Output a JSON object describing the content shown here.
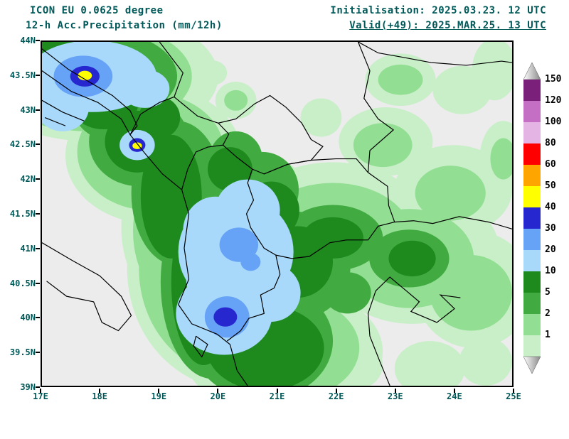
{
  "header": {
    "model": "ICON EU 0.0625 degree",
    "product": "12-h Acc.Precipitation (mm/12h)",
    "initialisation": "Initialisation: 2025.03.23. 12 UTC",
    "valid": "Valid(+49): 2025.MAR.25. 13 UTC"
  },
  "colors": {
    "title_text": "#005858",
    "axis_text": "#005858",
    "map_background": "#ececec",
    "border_line": "#000000",
    "frame": "#000000"
  },
  "map": {
    "lon_range": [
      17,
      25
    ],
    "lat_range": [
      39,
      44
    ],
    "lat_labels": [
      "44N",
      "43.5N",
      "43N",
      "42.5N",
      "42N",
      "41.5N",
      "41N",
      "40.5N",
      "40N",
      "39.5N",
      "39N"
    ],
    "lon_labels": [
      "17E",
      "18E",
      "19E",
      "20E",
      "21E",
      "22E",
      "23E",
      "24E",
      "25E"
    ],
    "borders": [
      {
        "name": "adriatic-coast",
        "points": [
          [
            17.0,
            43.58
          ],
          [
            17.5,
            43.28
          ],
          [
            17.95,
            43.12
          ],
          [
            18.35,
            42.88
          ],
          [
            18.5,
            42.65
          ],
          [
            18.75,
            42.38
          ],
          [
            19.05,
            42.08
          ],
          [
            19.38,
            41.85
          ],
          [
            19.5,
            41.5
          ],
          [
            19.42,
            41.0
          ],
          [
            19.5,
            40.55
          ],
          [
            19.32,
            40.18
          ],
          [
            19.55,
            39.9
          ],
          [
            19.98,
            39.75
          ],
          [
            20.2,
            39.6
          ],
          [
            20.32,
            39.22
          ],
          [
            20.5,
            39.0
          ]
        ]
      },
      {
        "name": "croatia-bosnia",
        "points": [
          [
            17.0,
            43.9
          ],
          [
            17.45,
            43.6
          ],
          [
            17.8,
            43.42
          ],
          [
            18.2,
            43.22
          ],
          [
            18.5,
            43.0
          ],
          [
            18.62,
            42.78
          ],
          [
            18.5,
            42.65
          ]
        ]
      },
      {
        "name": "dalmatian-islands-a",
        "points": [
          [
            17.0,
            43.15
          ],
          [
            17.35,
            42.98
          ],
          [
            17.72,
            42.85
          ]
        ]
      },
      {
        "name": "dalmatian-islands-b",
        "points": [
          [
            17.05,
            42.9
          ],
          [
            17.4,
            42.78
          ]
        ]
      },
      {
        "name": "bosnia-serbia",
        "points": [
          [
            19.0,
            44.0
          ],
          [
            19.4,
            43.55
          ],
          [
            19.25,
            43.2
          ],
          [
            19.65,
            42.92
          ],
          [
            20.0,
            42.82
          ]
        ]
      },
      {
        "name": "bosnia-montenegro",
        "points": [
          [
            18.5,
            42.65
          ],
          [
            18.68,
            42.95
          ],
          [
            19.0,
            43.12
          ],
          [
            19.25,
            43.2
          ]
        ]
      },
      {
        "name": "montenegro-east",
        "points": [
          [
            20.0,
            42.82
          ],
          [
            20.18,
            42.66
          ],
          [
            20.08,
            42.5
          ],
          [
            19.82,
            42.47
          ],
          [
            19.62,
            42.4
          ],
          [
            19.48,
            42.15
          ],
          [
            19.38,
            41.85
          ]
        ]
      },
      {
        "name": "kosovo",
        "points": [
          [
            20.0,
            42.82
          ],
          [
            20.3,
            42.88
          ],
          [
            20.62,
            43.1
          ],
          [
            20.88,
            43.22
          ],
          [
            21.15,
            43.05
          ],
          [
            21.42,
            42.82
          ],
          [
            21.58,
            42.58
          ],
          [
            21.78,
            42.48
          ],
          [
            21.58,
            42.28
          ],
          [
            21.18,
            42.22
          ],
          [
            20.78,
            42.08
          ],
          [
            20.58,
            42.15
          ],
          [
            20.32,
            42.32
          ],
          [
            20.08,
            42.5
          ]
        ]
      },
      {
        "name": "albania-east",
        "points": [
          [
            20.58,
            42.15
          ],
          [
            20.5,
            41.95
          ],
          [
            20.6,
            41.7
          ],
          [
            20.48,
            41.5
          ],
          [
            20.55,
            41.3
          ],
          [
            20.78,
            41.0
          ],
          [
            20.98,
            40.9
          ],
          [
            21.05,
            40.62
          ],
          [
            20.95,
            40.42
          ],
          [
            20.72,
            40.32
          ],
          [
            20.78,
            40.05
          ],
          [
            20.52,
            39.98
          ],
          [
            20.38,
            39.8
          ],
          [
            20.15,
            39.65
          ]
        ]
      },
      {
        "name": "macedonia-north",
        "points": [
          [
            20.78,
            42.08
          ],
          [
            21.18,
            42.22
          ],
          [
            21.58,
            42.28
          ],
          [
            22.0,
            42.3
          ],
          [
            22.35,
            42.3
          ],
          [
            22.55,
            42.1
          ]
        ]
      },
      {
        "name": "macedonia-bulgaria",
        "points": [
          [
            22.55,
            42.1
          ],
          [
            22.88,
            41.9
          ],
          [
            22.9,
            41.62
          ],
          [
            23.0,
            41.38
          ]
        ]
      },
      {
        "name": "greece-macedonia",
        "points": [
          [
            23.0,
            41.38
          ],
          [
            22.72,
            41.32
          ],
          [
            22.55,
            41.12
          ],
          [
            22.18,
            41.12
          ],
          [
            21.9,
            41.08
          ],
          [
            21.55,
            40.88
          ],
          [
            21.25,
            40.85
          ],
          [
            20.98,
            40.9
          ]
        ]
      },
      {
        "name": "serbia-bulgaria",
        "points": [
          [
            22.38,
            44.0
          ],
          [
            22.58,
            43.58
          ],
          [
            22.48,
            43.18
          ],
          [
            22.72,
            42.88
          ],
          [
            22.98,
            42.72
          ],
          [
            22.58,
            42.42
          ],
          [
            22.55,
            42.1
          ]
        ]
      },
      {
        "name": "bulgaria-greece",
        "points": [
          [
            23.0,
            41.38
          ],
          [
            23.32,
            41.4
          ],
          [
            23.65,
            41.36
          ],
          [
            24.1,
            41.46
          ],
          [
            24.6,
            41.38
          ],
          [
            25.0,
            41.28
          ]
        ]
      },
      {
        "name": "danube",
        "points": [
          [
            22.38,
            44.0
          ],
          [
            22.72,
            43.84
          ],
          [
            23.12,
            43.78
          ],
          [
            23.62,
            43.7
          ],
          [
            24.22,
            43.66
          ],
          [
            24.82,
            43.72
          ],
          [
            25.0,
            43.7
          ]
        ]
      },
      {
        "name": "aegean-coast",
        "points": [
          [
            22.92,
            39.0
          ],
          [
            22.75,
            39.35
          ],
          [
            22.58,
            39.72
          ],
          [
            22.55,
            40.05
          ],
          [
            22.68,
            40.38
          ],
          [
            22.92,
            40.58
          ],
          [
            23.2,
            40.38
          ],
          [
            23.42,
            40.22
          ],
          [
            23.28,
            40.08
          ],
          [
            23.72,
            39.92
          ],
          [
            24.02,
            40.12
          ],
          [
            23.78,
            40.32
          ],
          [
            24.12,
            40.28
          ]
        ]
      },
      {
        "name": "corfu-island",
        "points": [
          [
            19.62,
            39.72
          ],
          [
            19.82,
            39.6
          ],
          [
            19.72,
            39.42
          ],
          [
            19.58,
            39.58
          ],
          [
            19.62,
            39.72
          ]
        ]
      },
      {
        "name": "italy-heel-coast",
        "points": [
          [
            17.0,
            41.08
          ],
          [
            17.52,
            40.82
          ],
          [
            17.98,
            40.6
          ],
          [
            18.35,
            40.3
          ],
          [
            18.52,
            40.02
          ],
          [
            18.3,
            39.8
          ],
          [
            18.02,
            39.92
          ],
          [
            17.88,
            40.22
          ],
          [
            17.42,
            40.3
          ],
          [
            17.08,
            40.52
          ]
        ]
      }
    ],
    "precip_blobs": [
      [
        1,
        17.9,
        43.5,
        2.1,
        0.95
      ],
      [
        1,
        18.9,
        42.35,
        1.5,
        1.0
      ],
      [
        1,
        19.6,
        41.3,
        1.25,
        1.35
      ],
      [
        1,
        20.3,
        40.7,
        1.85,
        1.75
      ],
      [
        1,
        21.1,
        39.5,
        1.7,
        0.95
      ],
      [
        1,
        21.95,
        41.2,
        1.7,
        1.05
      ],
      [
        1,
        23.3,
        40.9,
        1.5,
        1.0
      ],
      [
        1,
        24.35,
        40.4,
        1.0,
        0.85
      ],
      [
        1,
        24.0,
        41.85,
        1.0,
        0.65
      ],
      [
        1,
        22.85,
        42.55,
        0.8,
        0.5
      ],
      [
        1,
        23.1,
        43.45,
        0.6,
        0.38
      ],
      [
        1,
        24.15,
        43.3,
        0.5,
        0.35
      ],
      [
        1,
        24.7,
        43.6,
        0.38,
        0.45
      ],
      [
        1,
        20.3,
        43.15,
        0.35,
        0.27
      ],
      [
        1,
        19.9,
        43.55,
        0.25,
        0.18
      ],
      [
        1,
        21.75,
        42.9,
        0.35,
        0.28
      ],
      [
        1,
        24.85,
        42.3,
        0.4,
        0.55
      ],
      [
        1,
        23.6,
        39.25,
        0.6,
        0.4
      ],
      [
        1,
        24.55,
        39.35,
        0.45,
        0.35
      ],
      [
        1,
        22.35,
        39.3,
        0.45,
        0.35
      ],
      [
        2,
        17.8,
        43.5,
        1.75,
        0.8
      ],
      [
        2,
        18.85,
        42.4,
        1.25,
        0.85
      ],
      [
        2,
        19.6,
        41.25,
        1.05,
        1.2
      ],
      [
        2,
        20.25,
        40.7,
        1.6,
        1.55
      ],
      [
        2,
        21.0,
        39.55,
        1.4,
        0.8
      ],
      [
        2,
        21.95,
        41.15,
        1.35,
        0.8
      ],
      [
        2,
        23.25,
        40.85,
        1.1,
        0.72
      ],
      [
        2,
        24.3,
        40.35,
        0.7,
        0.55
      ],
      [
        2,
        23.95,
        41.8,
        0.6,
        0.4
      ],
      [
        2,
        22.8,
        42.5,
        0.5,
        0.32
      ],
      [
        2,
        23.1,
        43.45,
        0.38,
        0.22
      ],
      [
        2,
        20.3,
        43.15,
        0.2,
        0.15
      ],
      [
        2,
        24.85,
        42.3,
        0.22,
        0.3
      ],
      [
        5,
        17.8,
        43.5,
        1.5,
        0.7
      ],
      [
        5,
        18.25,
        43.05,
        0.72,
        0.5
      ],
      [
        5,
        18.65,
        42.55,
        0.85,
        0.65
      ],
      [
        5,
        19.3,
        41.8,
        0.78,
        1.05
      ],
      [
        5,
        19.9,
        40.5,
        0.88,
        1.4
      ],
      [
        5,
        20.75,
        39.65,
        1.2,
        0.85
      ],
      [
        5,
        21.35,
        40.75,
        0.9,
        0.78
      ],
      [
        5,
        20.75,
        41.85,
        0.62,
        0.55
      ],
      [
        5,
        21.95,
        41.15,
        0.85,
        0.48
      ],
      [
        5,
        23.25,
        40.85,
        0.68,
        0.42
      ],
      [
        5,
        22.2,
        40.35,
        0.4,
        0.3
      ],
      [
        5,
        20.3,
        42.3,
        0.45,
        0.4
      ],
      [
        10,
        17.35,
        43.85,
        0.55,
        0.33
      ],
      [
        10,
        18.05,
        43.15,
        0.6,
        0.42
      ],
      [
        10,
        18.62,
        42.55,
        0.55,
        0.45
      ],
      [
        10,
        19.2,
        41.75,
        0.52,
        0.9
      ],
      [
        10,
        19.75,
        40.5,
        0.55,
        1.2
      ],
      [
        10,
        20.8,
        39.55,
        1.0,
        0.62
      ],
      [
        10,
        20.55,
        40.25,
        0.52,
        0.45
      ],
      [
        10,
        21.35,
        40.8,
        0.6,
        0.52
      ],
      [
        10,
        20.9,
        41.55,
        0.48,
        0.42
      ],
      [
        10,
        21.95,
        41.15,
        0.52,
        0.3
      ],
      [
        10,
        23.3,
        40.85,
        0.4,
        0.26
      ],
      [
        10,
        20.2,
        42.15,
        0.38,
        0.32
      ],
      [
        10,
        19.0,
        42.9,
        0.35,
        0.3
      ],
      [
        20,
        17.85,
        43.5,
        1.1,
        0.52
      ],
      [
        20,
        17.35,
        43.05,
        0.45,
        0.35
      ],
      [
        20,
        18.75,
        43.32,
        0.42,
        0.28
      ],
      [
        20,
        18.62,
        42.5,
        0.3,
        0.22
      ],
      [
        20,
        20.3,
        40.95,
        0.98,
        0.82
      ],
      [
        20,
        20.1,
        40.05,
        0.82,
        0.6
      ],
      [
        20,
        20.5,
        41.55,
        0.55,
        0.45
      ],
      [
        20,
        19.95,
        41.25,
        0.55,
        0.5
      ],
      [
        20,
        20.9,
        40.35,
        0.5,
        0.42
      ],
      [
        20,
        19.9,
        40.6,
        0.45,
        0.6
      ],
      [
        30,
        17.7,
        43.5,
        0.5,
        0.3
      ],
      [
        30,
        20.35,
        41.05,
        0.33,
        0.25
      ],
      [
        30,
        20.15,
        40.0,
        0.38,
        0.3
      ],
      [
        30,
        20.55,
        40.8,
        0.17,
        0.13
      ],
      [
        40,
        17.73,
        43.5,
        0.25,
        0.15
      ],
      [
        40,
        20.12,
        40.0,
        0.2,
        0.14
      ],
      [
        40,
        18.62,
        42.5,
        0.14,
        0.1
      ],
      [
        50,
        17.73,
        43.51,
        0.12,
        0.07
      ],
      [
        50,
        18.62,
        42.49,
        0.08,
        0.05
      ]
    ]
  },
  "legend": {
    "values": [
      "150",
      "120",
      "100",
      "80",
      "60",
      "50",
      "40",
      "30",
      "20",
      "10",
      "5",
      "2",
      "1"
    ],
    "cell_colors_top_to_bottom": [
      "#7a1f7a",
      "#c46ec4",
      "#e4b5e4",
      "#ff0000",
      "#ffa500",
      "#ffff00",
      "#2727cf",
      "#66a3f7",
      "#a8d9fb",
      "#1e8a1e",
      "#41ab41",
      "#92de92",
      "#c8efc8"
    ],
    "level_colors": {
      "1": "#c8efc8",
      "2": "#92de92",
      "5": "#41ab41",
      "10": "#1e8a1e",
      "20": "#a8d9fb",
      "30": "#66a3f7",
      "40": "#2727cf",
      "50": "#ffff00",
      "60": "#ffa500",
      "80": "#ff0000",
      "100": "#e4b5e4",
      "120": "#c46ec4",
      "150": "#7a1f7a"
    },
    "overflow_arrow_gradient": [
      "#ffffff",
      "#8a8a8a"
    ]
  }
}
